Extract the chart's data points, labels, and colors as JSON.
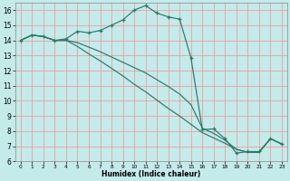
{
  "xlabel": "Humidex (Indice chaleur)",
  "bg_color": "#c5eaea",
  "grid_color": "#e8a0a0",
  "line_color": "#2a7a6a",
  "xlim": [
    -0.5,
    23.5
  ],
  "ylim": [
    6,
    16.5
  ],
  "xticks": [
    0,
    1,
    2,
    3,
    4,
    5,
    6,
    7,
    8,
    9,
    10,
    11,
    12,
    13,
    14,
    15,
    16,
    17,
    18,
    19,
    20,
    21,
    22,
    23
  ],
  "yticks": [
    6,
    7,
    8,
    9,
    10,
    11,
    12,
    13,
    14,
    15,
    16
  ],
  "line1_x": [
    0,
    1,
    2,
    3,
    4,
    5,
    6,
    7,
    8,
    9,
    10,
    11,
    12,
    13,
    14,
    15,
    16,
    17,
    18,
    19,
    20,
    21,
    22,
    23
  ],
  "line1_y": [
    14.0,
    14.35,
    14.25,
    14.0,
    14.1,
    14.6,
    14.5,
    14.65,
    15.0,
    15.35,
    16.0,
    16.3,
    15.8,
    15.55,
    15.4,
    12.85,
    8.1,
    8.15,
    7.5,
    6.55,
    6.65,
    6.65,
    7.5,
    7.15
  ],
  "line2_x": [
    0,
    1,
    2,
    3,
    4,
    5,
    6,
    7,
    8,
    9,
    10,
    11,
    12,
    13,
    14,
    15,
    16,
    17,
    18,
    19,
    20,
    21,
    22,
    23
  ],
  "line2_y": [
    14.0,
    14.35,
    14.25,
    14.0,
    14.0,
    13.85,
    13.55,
    13.25,
    12.9,
    12.55,
    12.2,
    11.85,
    11.4,
    10.95,
    10.45,
    9.75,
    8.2,
    7.85,
    7.4,
    6.8,
    6.6,
    6.6,
    7.5,
    7.15
  ],
  "line3_x": [
    0,
    1,
    2,
    3,
    4,
    5,
    6,
    7,
    8,
    9,
    10,
    11,
    12,
    13,
    14,
    15,
    16,
    17,
    18,
    19,
    20,
    21,
    22,
    23
  ],
  "line3_y": [
    14.0,
    14.35,
    14.25,
    14.0,
    14.0,
    13.6,
    13.1,
    12.65,
    12.15,
    11.65,
    11.1,
    10.6,
    10.05,
    9.5,
    9.0,
    8.45,
    7.9,
    7.55,
    7.2,
    6.8,
    6.6,
    6.6,
    7.5,
    7.15
  ]
}
